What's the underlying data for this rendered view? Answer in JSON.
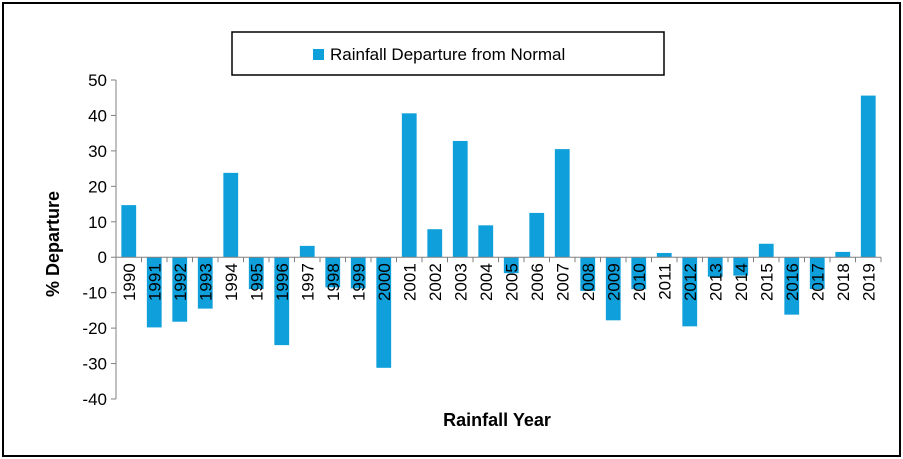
{
  "chart_data": {
    "type": "bar",
    "title": "",
    "xlabel": "Rainfall Year",
    "ylabel": "% Departure",
    "ylim": [
      -40,
      50
    ],
    "yticks": [
      50,
      40,
      30,
      20,
      10,
      0,
      -10,
      -20,
      -30,
      -40
    ],
    "grid": false,
    "legend_position": "top-center",
    "bar_color": "#0FA0DB",
    "categories": [
      "1990",
      "1991",
      "1992",
      "1993",
      "1994",
      "1995",
      "1996",
      "1997",
      "1998",
      "1999",
      "2000",
      "2001",
      "2002",
      "2003",
      "2004",
      "2005",
      "2006",
      "2007",
      "2008",
      "2009",
      "2010",
      "2011",
      "2012",
      "2013",
      "2014",
      "2015",
      "2016",
      "2017",
      "2018",
      "2019"
    ],
    "series": [
      {
        "name": "Rainfall Departure from Normal",
        "values": [
          14.7,
          -19.8,
          -18.2,
          -14.5,
          23.8,
          -9.0,
          -24.8,
          3.2,
          -8.5,
          -8.8,
          -31.2,
          40.6,
          7.9,
          32.8,
          9.0,
          -4.5,
          12.5,
          30.5,
          -9.5,
          -17.8,
          -9.0,
          1.2,
          -19.5,
          -5.5,
          -5.2,
          3.8,
          -16.2,
          -9.0,
          1.5,
          45.6
        ]
      }
    ]
  }
}
